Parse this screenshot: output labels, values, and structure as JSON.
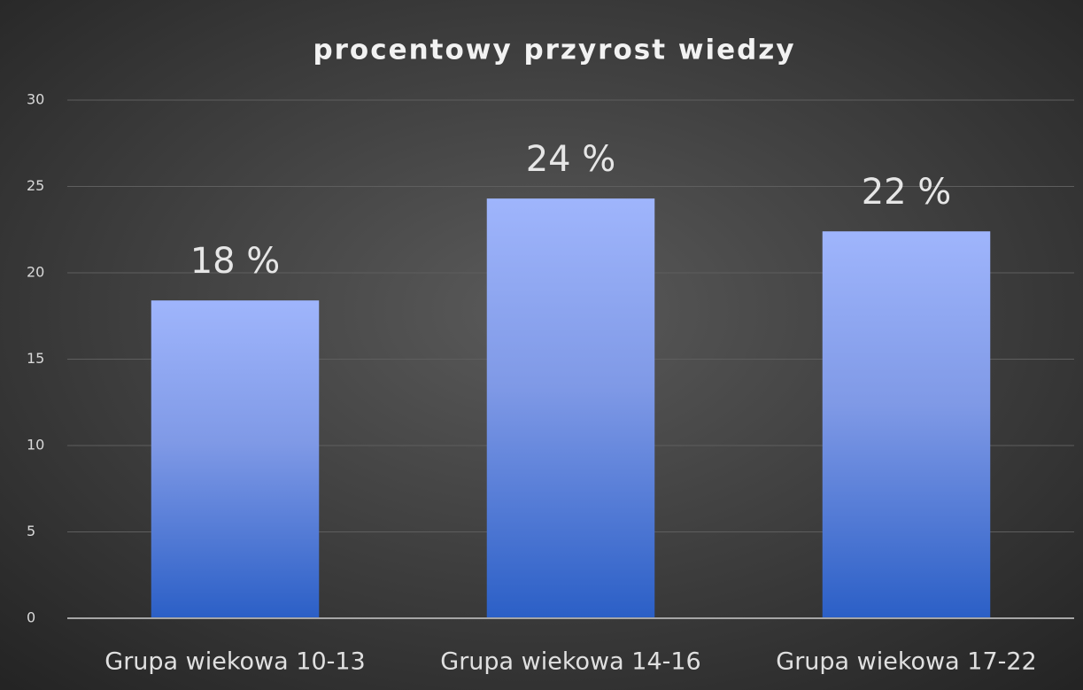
{
  "chart_data": {
    "type": "bar",
    "title": "procentowy przyrost wiedzy",
    "categories": [
      "Grupa wiekowa 10-13",
      "Grupa wiekowa 14-16",
      "Grupa wiekowa 17-22"
    ],
    "values": [
      18.4,
      24.3,
      22.4
    ],
    "value_labels": [
      "18 %",
      "24 %",
      "22 %"
    ],
    "color": "#4a78d6",
    "ylim": [
      0,
      30
    ],
    "yticks": [
      0,
      5,
      10,
      15,
      20,
      25,
      30
    ],
    "grid": true
  }
}
